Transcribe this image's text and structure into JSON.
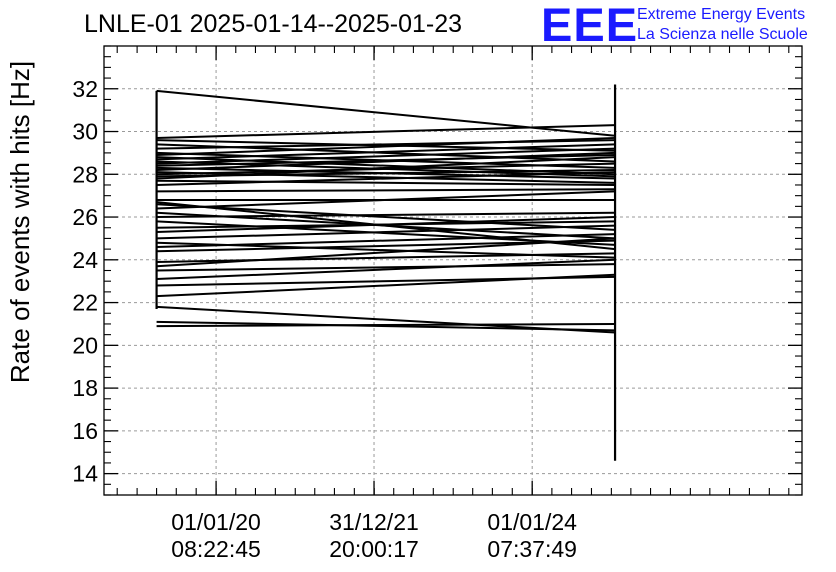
{
  "header": {
    "title": "LNLE-01 2025-01-14--2025-01-23",
    "logo": "EEE",
    "logo_line1": "Extreme Energy Events",
    "logo_line2": "La Scienza nelle Scuole"
  },
  "chart_data": {
    "type": "line",
    "title": "LNLE-01 2025-01-14--2025-01-23",
    "xlabel": "",
    "ylabel": "Rate of events with hits [Hz]",
    "ylim": [
      13,
      34
    ],
    "y_ticks": [
      14,
      16,
      18,
      20,
      22,
      24,
      26,
      28,
      30,
      32
    ],
    "x_ticks": [
      {
        "date": "01/01/20",
        "time": "08:22:45"
      },
      {
        "date": "31/12/21",
        "time": "20:00:17"
      },
      {
        "date": "01/01/24",
        "time": "07:37:49"
      }
    ],
    "x_range": [
      "2018-08-01",
      "2027-06-01"
    ],
    "grid": true,
    "x_start": "2019-04-01",
    "x_end": "2025-01-18",
    "segments": [
      [
        31.9,
        29.8
      ],
      [
        29.7,
        30.3
      ],
      [
        29.6,
        29.1
      ],
      [
        29.4,
        28.6
      ],
      [
        29.2,
        29.6
      ],
      [
        29.0,
        28.3
      ],
      [
        28.9,
        29.7
      ],
      [
        28.8,
        28.0
      ],
      [
        28.7,
        29.4
      ],
      [
        28.6,
        27.9
      ],
      [
        28.5,
        29.2
      ],
      [
        28.4,
        28.9
      ],
      [
        28.3,
        27.8
      ],
      [
        28.2,
        29.0
      ],
      [
        28.1,
        27.6
      ],
      [
        28.0,
        28.5
      ],
      [
        27.9,
        28.2
      ],
      [
        27.8,
        28.8
      ],
      [
        27.7,
        27.5
      ],
      [
        27.5,
        28.1
      ],
      [
        27.2,
        27.3
      ],
      [
        26.8,
        26.8
      ],
      [
        26.7,
        24.5
      ],
      [
        26.6,
        25.4
      ],
      [
        26.4,
        27.2
      ],
      [
        26.2,
        25.0
      ],
      [
        26.0,
        26.2
      ],
      [
        25.8,
        24.7
      ],
      [
        25.5,
        25.8
      ],
      [
        25.3,
        26.0
      ],
      [
        25.0,
        25.6
      ],
      [
        24.8,
        24.1
      ],
      [
        24.6,
        25.2
      ],
      [
        24.4,
        24.9
      ],
      [
        23.9,
        24.3
      ],
      [
        23.7,
        25.0
      ],
      [
        23.5,
        23.8
      ],
      [
        23.1,
        24.0
      ],
      [
        22.8,
        23.2
      ],
      [
        22.3,
        23.3
      ],
      [
        21.8,
        20.6
      ],
      [
        21.1,
        20.7
      ],
      [
        20.9,
        21.0
      ]
    ],
    "vertical_bars": [
      {
        "x": "2019-04-01",
        "from": 21.7,
        "to": 31.9
      },
      {
        "x": "2025-01-18",
        "from": 14.6,
        "to": 32.2
      }
    ]
  }
}
